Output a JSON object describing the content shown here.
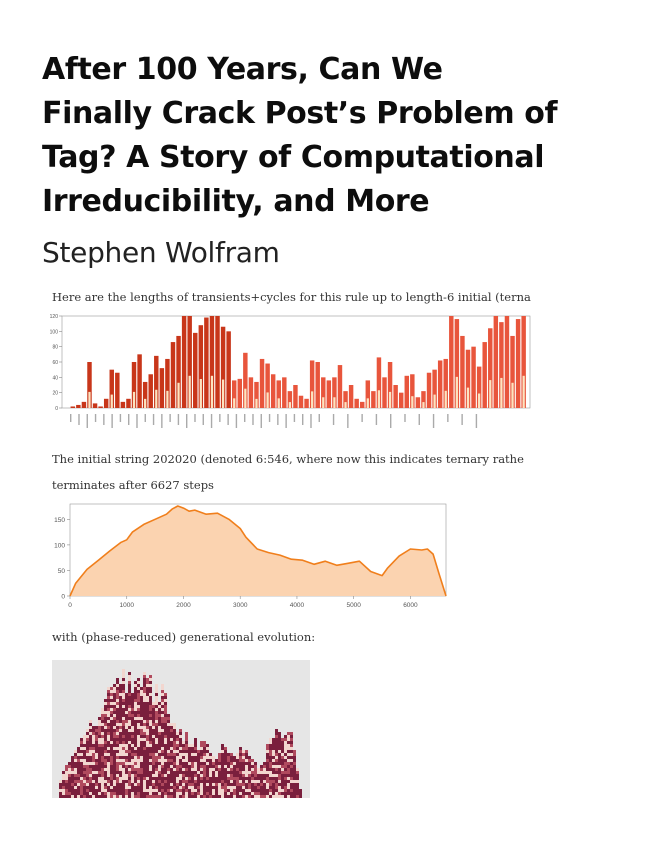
{
  "article": {
    "title_lines": [
      "After 100 Years, Can We",
      "Finally Crack Post’s Problem of",
      "Tag? A Story of Computational",
      "Irreducibility, and More"
    ],
    "author": "Stephen Wolfram"
  },
  "paragraphs": {
    "p1": "Here are the lengths of transients+cycles for this rule up to length-6 initial (terna",
    "p2": "The initial string 202020 (denoted 6:546, where now this indicates ternary rathe",
    "p3": "terminates after 6627 steps",
    "p4": "with (phase-reduced) generational evolution:"
  },
  "colors": {
    "bar_dark": "#c8361a",
    "bar_light": "#e8553c",
    "bar_fill": "#fde3c0",
    "line": "#f07f1c",
    "area": "#fbd3b0",
    "evo_bg": "#e6e6e6",
    "evo_dark": "#7a1f3d",
    "evo_light": "#f2d6cf"
  },
  "chart_data": [
    {
      "type": "bar",
      "ylim": [
        0,
        120
      ],
      "yticks": [
        0,
        20,
        40,
        60,
        80,
        100,
        120
      ],
      "values": [
        0,
        2,
        4,
        8,
        60,
        6,
        2,
        12,
        50,
        46,
        8,
        12,
        60,
        70,
        34,
        44,
        68,
        52,
        64,
        86,
        94,
        120,
        120,
        98,
        108,
        118,
        120,
        120,
        106,
        100,
        36,
        38,
        72,
        40,
        34,
        64,
        58,
        44,
        36,
        40,
        22,
        30,
        16,
        12,
        62,
        60,
        40,
        36,
        40,
        56,
        22,
        30,
        12,
        8,
        36,
        22,
        66,
        40,
        60,
        30,
        20,
        42,
        44,
        14,
        22,
        46,
        50,
        62,
        64,
        120,
        116,
        94,
        76,
        80,
        54,
        86,
        104,
        120,
        112,
        120,
        94,
        116,
        120
      ]
    },
    {
      "type": "area",
      "xlim": [
        0,
        6627
      ],
      "ylim": [
        0,
        180
      ],
      "xticks": [
        0,
        1000,
        2000,
        3000,
        4000,
        5000,
        6000
      ],
      "yticks": [
        0,
        50,
        100,
        150
      ],
      "x": [
        0,
        100,
        300,
        500,
        700,
        900,
        1000,
        1100,
        1300,
        1500,
        1700,
        1800,
        1900,
        2000,
        2100,
        2200,
        2400,
        2600,
        2800,
        3000,
        3100,
        3300,
        3500,
        3700,
        3900,
        4100,
        4300,
        4500,
        4700,
        4900,
        5100,
        5300,
        5500,
        5600,
        5800,
        6000,
        6200,
        6300,
        6400,
        6500,
        6627
      ],
      "y": [
        0,
        25,
        52,
        70,
        88,
        105,
        110,
        125,
        140,
        150,
        160,
        170,
        176,
        172,
        166,
        168,
        160,
        162,
        150,
        132,
        115,
        92,
        85,
        80,
        72,
        70,
        62,
        68,
        60,
        64,
        68,
        48,
        40,
        55,
        78,
        92,
        90,
        92,
        82,
        45,
        0
      ]
    }
  ],
  "evolution": {
    "xlim": [
      0,
      6627
    ]
  }
}
